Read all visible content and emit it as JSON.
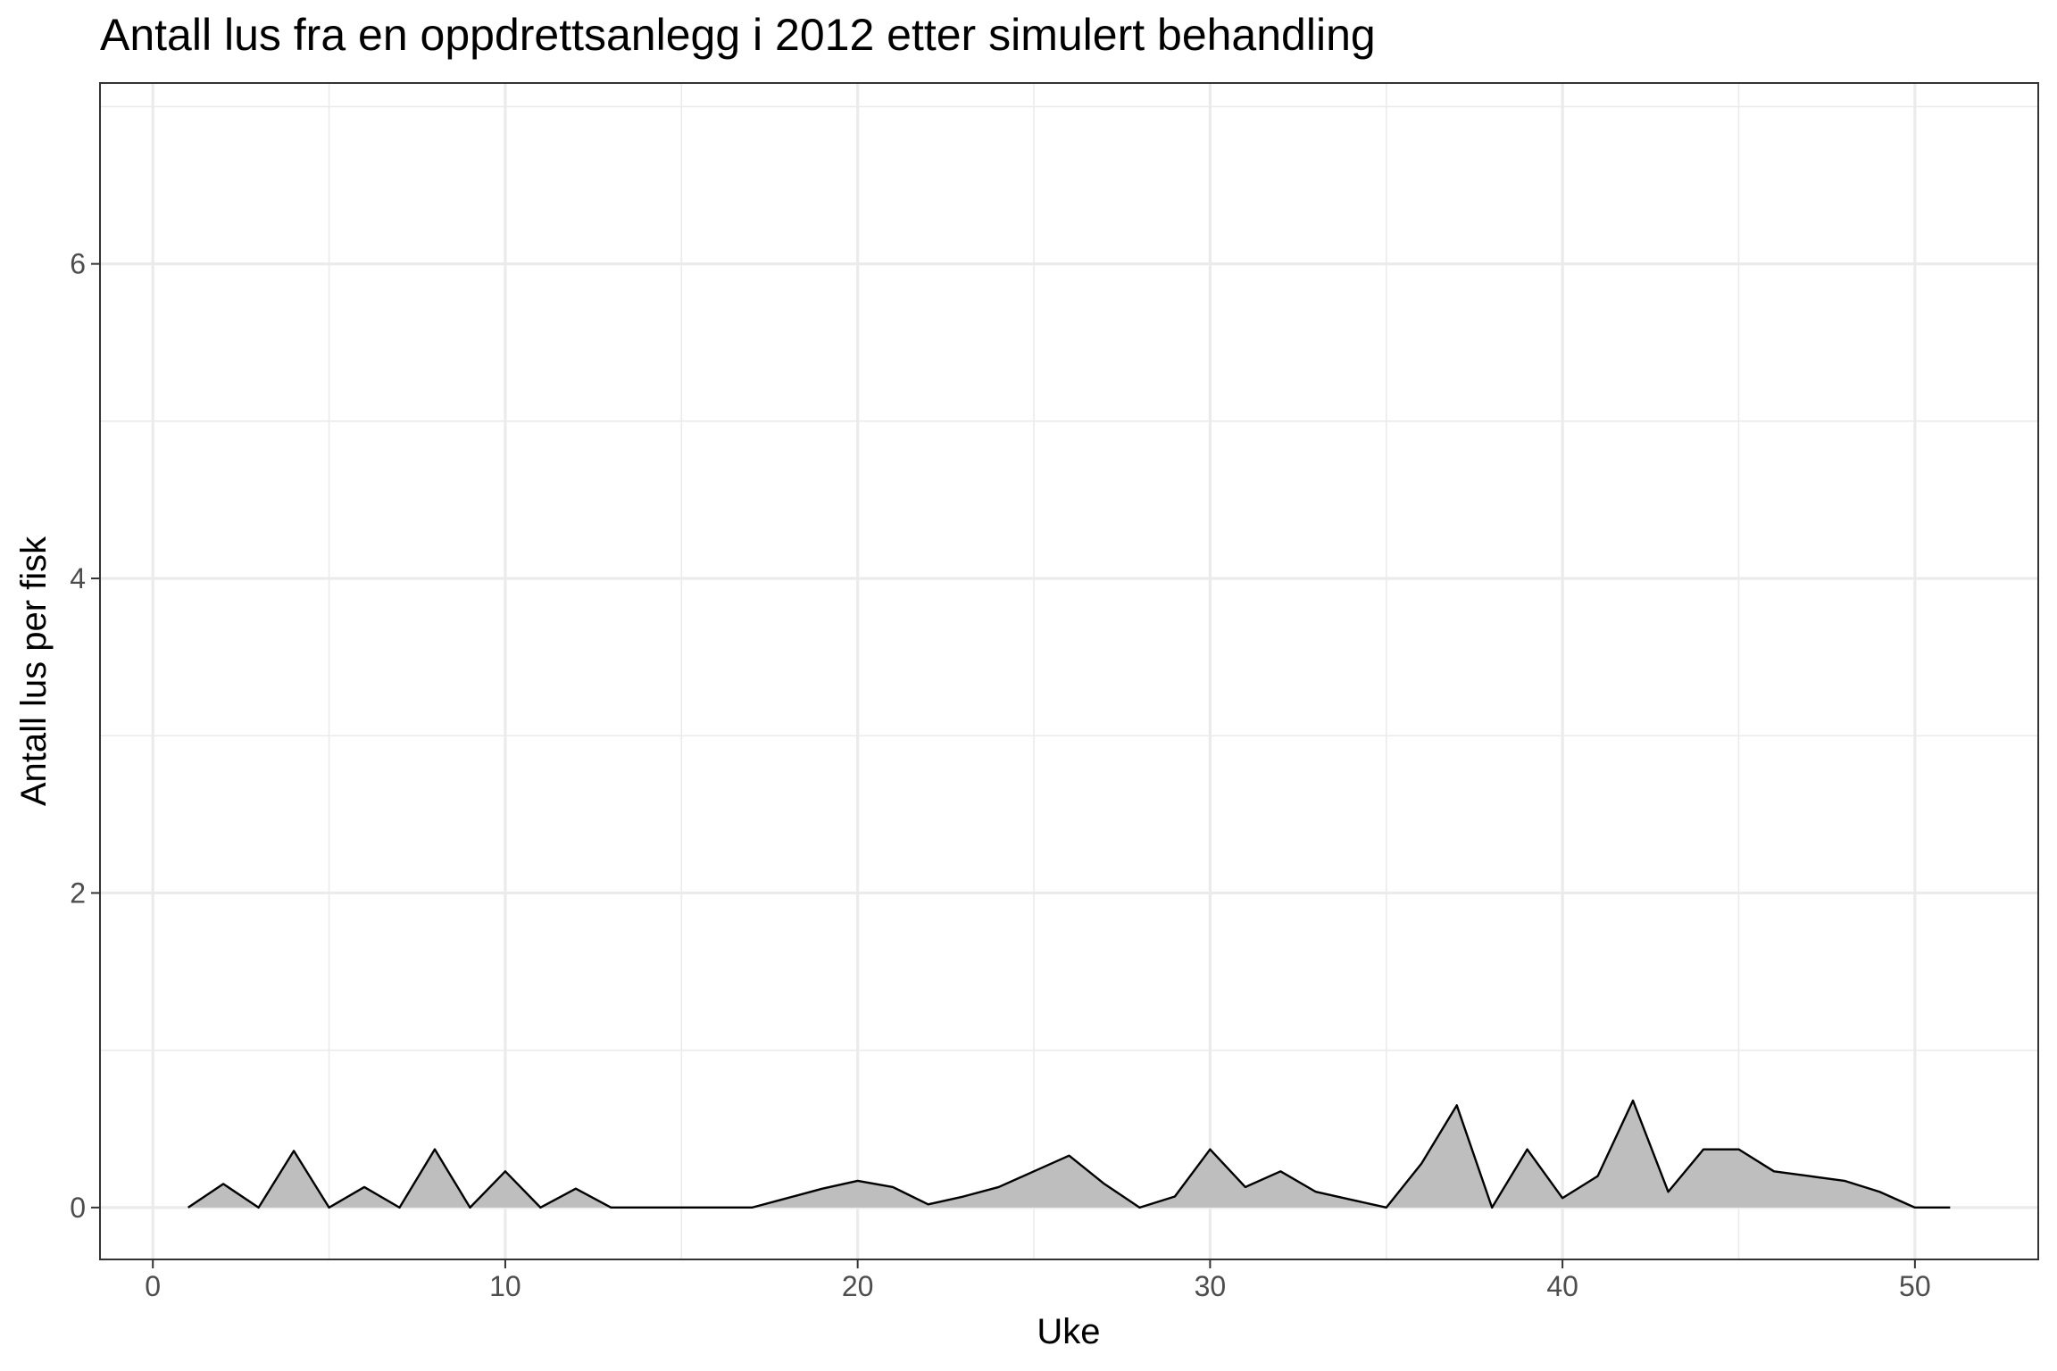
{
  "chart_data": {
    "type": "area",
    "title": "Antall lus fra en oppdrettsanlegg i 2012 etter simulert behandling",
    "xlabel": "Uke",
    "ylabel": "Antall lus per fisk",
    "xlim": [
      -1.5,
      53.5
    ],
    "ylim": [
      -0.33,
      7.15
    ],
    "x_ticks": [
      0,
      10,
      20,
      30,
      40,
      50
    ],
    "x_tick_labels": [
      "0",
      "10",
      "20",
      "30",
      "40",
      "50"
    ],
    "y_ticks": [
      0,
      2,
      4,
      6
    ],
    "y_tick_labels": [
      "0",
      "2",
      "4",
      "6"
    ],
    "grid": true,
    "legend": "none",
    "colors": {
      "fill": "#bebebe",
      "line": "#000000",
      "grid": "#ebebeb",
      "panel_border": "#333333"
    },
    "series": [
      {
        "x": [
          1,
          2,
          3,
          4,
          5,
          6,
          7,
          8,
          9,
          10,
          11,
          12,
          13,
          14,
          15,
          16,
          17,
          18,
          19,
          20,
          21,
          22,
          23,
          24,
          25,
          26,
          27,
          28,
          29,
          30,
          31,
          32,
          33,
          34,
          35,
          36,
          37,
          38,
          39,
          40,
          41,
          42,
          43,
          44,
          45,
          46,
          47,
          48,
          49,
          50,
          51
        ],
        "values": [
          0,
          0.15,
          0,
          0.36,
          0,
          0.13,
          0,
          0.37,
          0,
          0.23,
          0,
          0.12,
          0,
          0,
          0,
          0,
          0,
          0.06,
          0.12,
          0.17,
          0.13,
          0.02,
          0.07,
          0.13,
          0.23,
          0.33,
          0.15,
          0,
          0.07,
          0.37,
          0.13,
          0.23,
          0.1,
          0.05,
          0,
          0.28,
          0.65,
          0,
          0.37,
          0.06,
          0.2,
          0.68,
          0.1,
          0.37,
          0.37,
          0.23,
          0.2,
          0.17,
          0.1,
          0,
          0
        ]
      }
    ]
  }
}
